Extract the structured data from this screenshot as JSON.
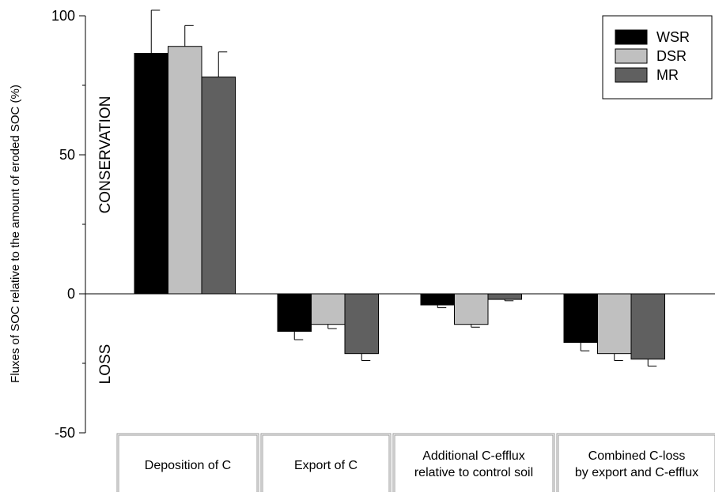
{
  "chart_data": {
    "type": "bar",
    "ylabel": "Fluxes of SOC relative to the amount of eroded SOC (%)",
    "ylim": [
      -50,
      100
    ],
    "yticks": [
      -50,
      0,
      50,
      100
    ],
    "y_tick_labels": [
      "-50",
      "0",
      "50",
      "100"
    ],
    "grid": false,
    "legend_position": "top-right",
    "region_labels": {
      "positive": "CONSERVATION",
      "negative": "LOSS"
    },
    "categories": [
      [
        "Deposition of C"
      ],
      [
        "Export of C"
      ],
      [
        "Additional C-efflux",
        "relative to control soil"
      ],
      [
        "Combined C-loss",
        "by export and C-efflux"
      ]
    ],
    "series": [
      {
        "name": "WSR",
        "color": "#000000",
        "values": [
          86.5,
          -13.5,
          -4,
          -17.5
        ],
        "errors": [
          15.5,
          3,
          1,
          3
        ]
      },
      {
        "name": "DSR",
        "color": "#c0c0c0",
        "values": [
          89,
          -11,
          -11,
          -21.5
        ],
        "errors": [
          7.5,
          1.5,
          1,
          2.5
        ]
      },
      {
        "name": "MR",
        "color": "#606060",
        "values": [
          78,
          -21.5,
          -2,
          -23.5
        ],
        "errors": [
          9,
          2.5,
          0.5,
          2.5
        ]
      }
    ]
  }
}
